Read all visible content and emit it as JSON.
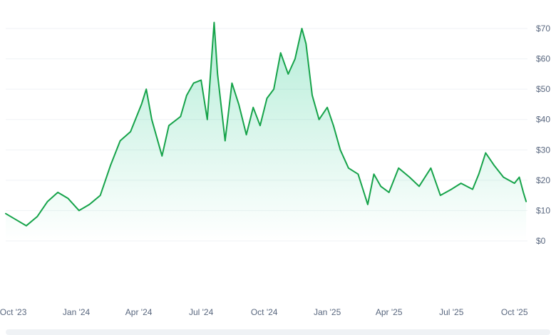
{
  "chart_data": {
    "type": "area",
    "title": "",
    "xlabel": "",
    "ylabel": "",
    "x_ticks": [
      "Oct '23",
      "Jan '24",
      "Apr '24",
      "Jul '24",
      "Oct '24",
      "Jan '25",
      "Apr '25",
      "Jul '25",
      "Oct '25"
    ],
    "y_ticks": [
      "$0",
      "$10",
      "$20",
      "$30",
      "$40",
      "$50",
      "$60",
      "$70"
    ],
    "ylim": [
      0,
      70
    ],
    "xlim": [
      "2023-09-20",
      "2025-10-20"
    ],
    "grid": true,
    "legend": "none",
    "colors": {
      "line": "#16a34a",
      "fill_top": "#16c784",
      "grid": "#eff2f5",
      "tick_text": "#58667e"
    },
    "series": [
      {
        "x": [
          "2023-09-20",
          "2023-10-05",
          "2023-10-20",
          "2023-11-05",
          "2023-11-20",
          "2023-12-05",
          "2023-12-20",
          "2024-01-05",
          "2024-01-20",
          "2024-02-05",
          "2024-02-20",
          "2024-03-05",
          "2024-03-20",
          "2024-04-05",
          "2024-04-12",
          "2024-04-20",
          "2024-05-05",
          "2024-05-15",
          "2024-06-01",
          "2024-06-10",
          "2024-06-20",
          "2024-07-01",
          "2024-07-10",
          "2024-07-20",
          "2024-07-25",
          "2024-08-05",
          "2024-08-15",
          "2024-08-25",
          "2024-09-05",
          "2024-09-15",
          "2024-09-25",
          "2024-10-05",
          "2024-10-15",
          "2024-10-25",
          "2024-11-05",
          "2024-11-15",
          "2024-11-25",
          "2024-12-01",
          "2024-12-10",
          "2024-12-20",
          "2025-01-01",
          "2025-01-10",
          "2025-01-20",
          "2025-02-01",
          "2025-02-15",
          "2025-03-01",
          "2025-03-10",
          "2025-03-20",
          "2025-04-01",
          "2025-04-15",
          "2025-05-01",
          "2025-05-15",
          "2025-06-01",
          "2025-06-15",
          "2025-07-01",
          "2025-07-15",
          "2025-08-01",
          "2025-08-10",
          "2025-08-20",
          "2025-09-01",
          "2025-09-15",
          "2025-10-01",
          "2025-10-08",
          "2025-10-14",
          "2025-10-18"
        ],
        "y": [
          9,
          7,
          5,
          8,
          13,
          16,
          14,
          10,
          12,
          15,
          25,
          33,
          36,
          45,
          50,
          40,
          28,
          38,
          41,
          48,
          52,
          53,
          40,
          72,
          55,
          33,
          52,
          45,
          35,
          44,
          38,
          47,
          50,
          62,
          55,
          60,
          70,
          65,
          48,
          40,
          44,
          38,
          30,
          24,
          22,
          12,
          22,
          18,
          16,
          24,
          21,
          18,
          24,
          15,
          17,
          19,
          17,
          22,
          29,
          25,
          21,
          19,
          21,
          16,
          13
        ]
      }
    ]
  }
}
